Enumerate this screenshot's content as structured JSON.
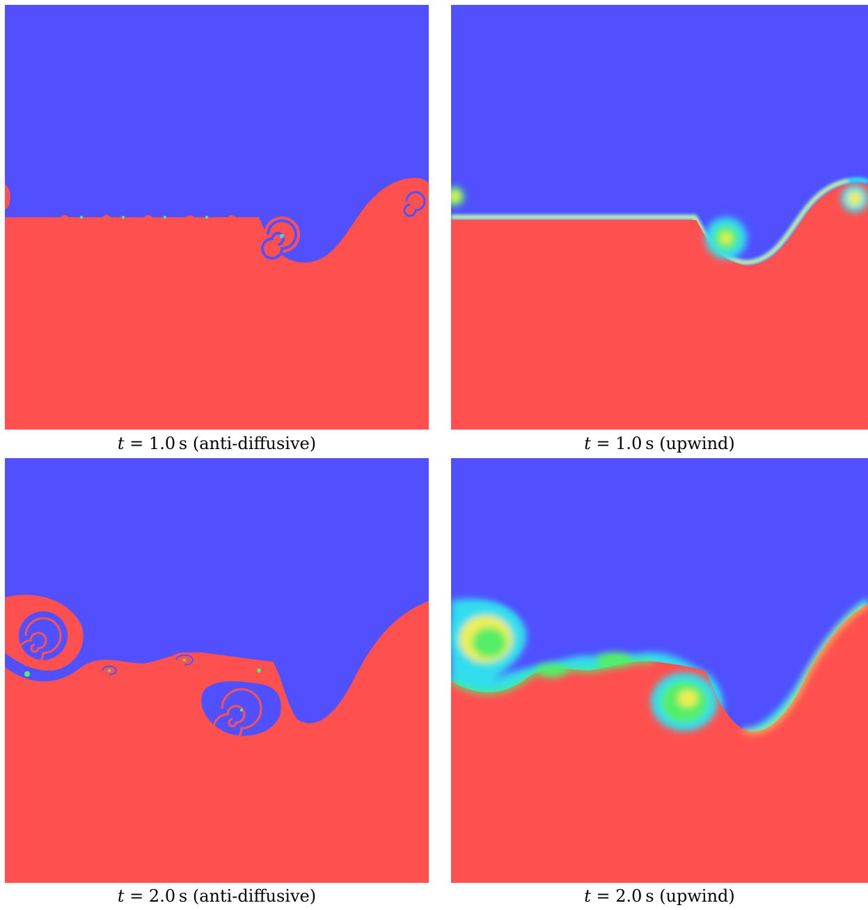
{
  "panels": [
    {
      "id": "p1",
      "time_label": "t",
      "eq": " = ",
      "value": "1.0",
      "unit": "s",
      "method": "(anti-diffusive)"
    },
    {
      "id": "p2",
      "time_label": "t",
      "eq": " = ",
      "value": "1.0",
      "unit": "s",
      "method": "(upwind)"
    },
    {
      "id": "p3",
      "time_label": "t",
      "eq": " = ",
      "value": "2.0",
      "unit": "s",
      "method": "(anti-diffusive)"
    },
    {
      "id": "p4",
      "time_label": "t",
      "eq": " = ",
      "value": "2.0",
      "unit": "s",
      "method": "(upwind)"
    }
  ],
  "colors": {
    "upper_fluid": "#5050ff",
    "lower_fluid": "#ff5050",
    "mixing_green": "#55ee66",
    "mixing_yellow": "#eeee55",
    "mixing_cyan": "#33ddee"
  }
}
